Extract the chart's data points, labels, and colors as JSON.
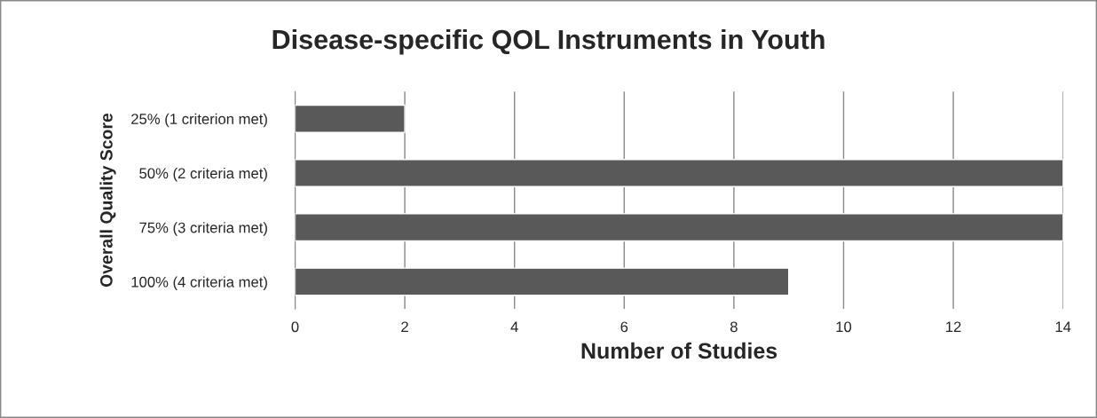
{
  "chart_data": {
    "type": "bar",
    "orientation": "horizontal",
    "title": "Disease-specific QOL Instruments in Youth",
    "xlabel": "Number of Studies",
    "ylabel": "Overall Quality Score",
    "categories": [
      "25% (1 criterion met)",
      "50% (2 criteria met)",
      "75% (3 criteria met)",
      "100% (4 criteria met)"
    ],
    "series": [
      {
        "color": "#595959",
        "values": [
          2,
          14,
          14,
          9
        ]
      }
    ],
    "xlim": [
      0,
      14
    ],
    "xticks": [
      0,
      2,
      4,
      6,
      8,
      10,
      12,
      14
    ],
    "grid": "x",
    "legend": false
  }
}
